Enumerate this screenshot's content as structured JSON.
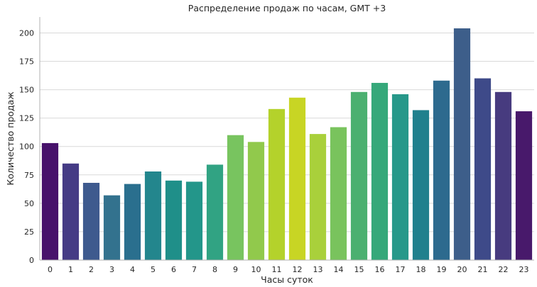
{
  "chart_data": {
    "type": "bar",
    "title": "Распределение продаж по часам, GMT +3",
    "xlabel": "Часы суток",
    "ylabel": "Количество продаж",
    "categories": [
      "0",
      "1",
      "2",
      "3",
      "4",
      "5",
      "6",
      "7",
      "8",
      "9",
      "10",
      "11",
      "12",
      "13",
      "14",
      "15",
      "16",
      "17",
      "18",
      "19",
      "20",
      "21",
      "22",
      "23"
    ],
    "values": [
      103,
      85,
      68,
      57,
      67,
      78,
      70,
      69,
      84,
      110,
      104,
      133,
      143,
      111,
      117,
      148,
      156,
      146,
      132,
      158,
      204,
      160,
      148,
      131
    ],
    "ylim": [
      0,
      214
    ],
    "yticks": [
      0,
      25,
      50,
      75,
      100,
      125,
      150,
      175,
      200
    ],
    "grid": "horizontal",
    "palette": "viridis",
    "colors": [
      "#47126b",
      "#453b85",
      "#3e5a8e",
      "#33728e",
      "#2a6f8e",
      "#23868d",
      "#1f8f89",
      "#23968a",
      "#31a383",
      "#78c45f",
      "#91c94c",
      "#b4d22b",
      "#c8d524",
      "#a9d03b",
      "#79c35d",
      "#4bb070",
      "#36a87a",
      "#27988a",
      "#20808d",
      "#2d6a8e",
      "#3d5e8a",
      "#3e4a89",
      "#473b7f",
      "#48196b"
    ]
  }
}
